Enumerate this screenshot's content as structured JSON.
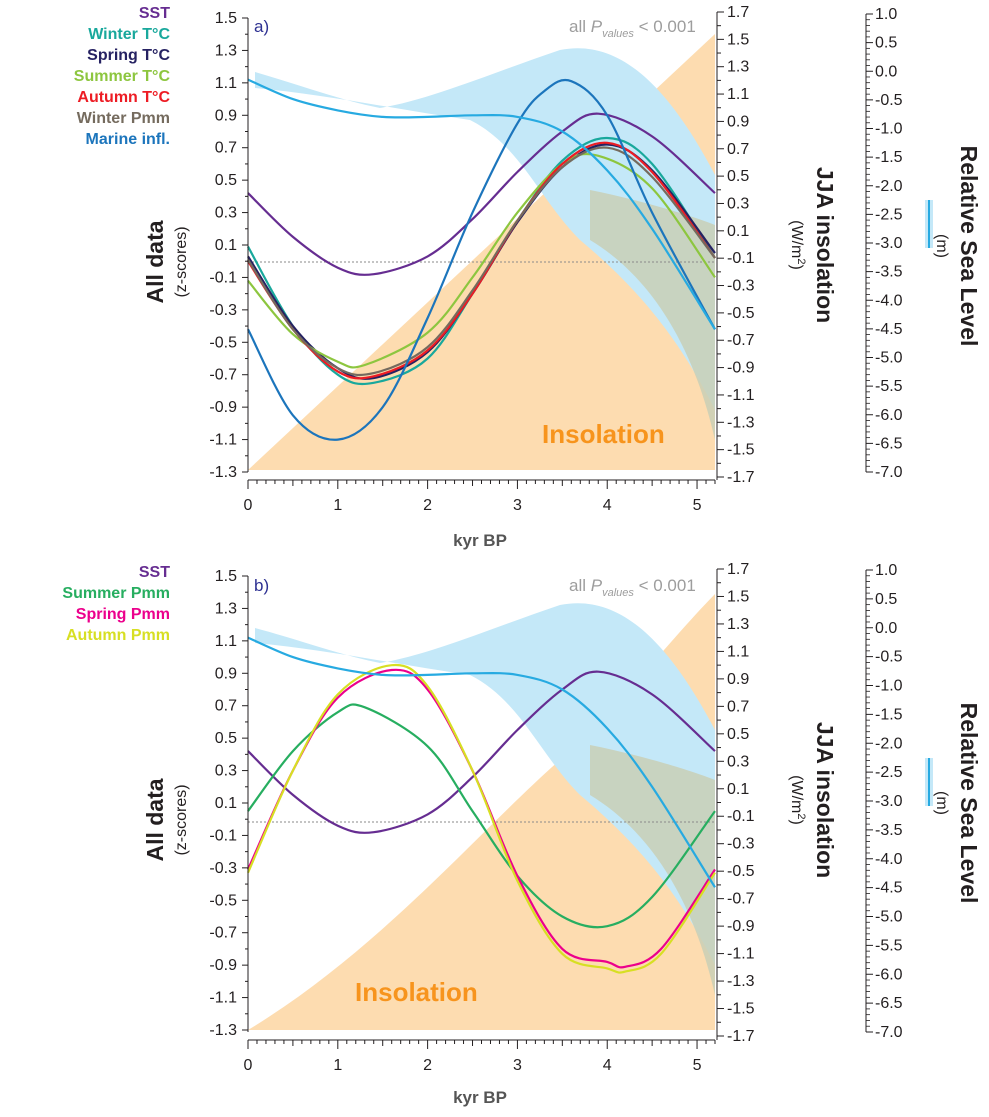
{
  "colors": {
    "insolation_fill": "#fddcb0",
    "sea_level_band": "#c4e8f8",
    "overlap_fill": "#c9cfb6",
    "sea_level_line": "#27aae1",
    "insolation_text": "#f7941d",
    "pvalue_text": "#9d9d9d",
    "panel_label_text": "#2e3192"
  },
  "x_axis": {
    "title": "kyr BP",
    "ticks": [
      "0",
      "1",
      "2",
      "3",
      "4",
      "5"
    ]
  },
  "left_axis": {
    "title": "All data",
    "subtitle": "(z-scores)",
    "ticks": [
      "1.5",
      "1.3",
      "1.1",
      "0.9",
      "0.7",
      "0.5",
      "0.3",
      "0.1",
      "-0.1",
      "-0.3",
      "-0.5",
      "-0.7",
      "-0.9",
      "-1.1",
      "-1.3"
    ]
  },
  "mid_axis": {
    "title": "JJA insolation",
    "subtitle_unit": "(W/m",
    "subtitle_sup": "2",
    "subtitle_close": ")",
    "ticks": [
      "1.7",
      "1.5",
      "1.3",
      "1.1",
      "0.9",
      "0.7",
      "0.5",
      "0.3",
      "0.1",
      "-0.1",
      "-0.3",
      "-0.5",
      "-0.7",
      "-0.9",
      "-1.1",
      "-1.3",
      "-1.5",
      "-1.7"
    ]
  },
  "right_axis": {
    "title": "Relative Sea Level",
    "subtitle": "(m)",
    "ticks": [
      "1.0",
      "0.5",
      "0.0",
      "-0.5",
      "-1.0",
      "-1.5",
      "-2.0",
      "-2.5",
      "-3.0",
      "-3.5",
      "-4.0",
      "-4.5",
      "-5.0",
      "-5.5",
      "-6.0",
      "-6.5",
      "-7.0"
    ]
  },
  "pvalue": {
    "prefix": "all ",
    "p": "P",
    "sub": "values",
    "suffix": " < 0.001"
  },
  "insolation_label": "Insolation",
  "chart_data": [
    {
      "panel": "a)",
      "type": "line",
      "xlabel": "kyr BP",
      "ylabel": "All data (z-scores)",
      "xlim": [
        0,
        5.2
      ],
      "ylim": [
        -1.3,
        1.5
      ],
      "legend_position": "top-left",
      "series": [
        {
          "name": "SST",
          "color": "#662d91",
          "x": [
            0,
            0.5,
            1,
            1.4,
            2,
            2.5,
            3,
            3.5,
            3.9,
            4.5,
            5.2
          ],
          "y": [
            0.42,
            0.15,
            -0.04,
            -0.08,
            0.03,
            0.26,
            0.55,
            0.8,
            0.91,
            0.77,
            0.42
          ]
        },
        {
          "name": "Winter T°C",
          "color": "#19a89c",
          "x": [
            0,
            0.5,
            1,
            1.4,
            2,
            2.5,
            3,
            3.5,
            4,
            4.5,
            5.2
          ],
          "y": [
            0.09,
            -0.4,
            -0.7,
            -0.75,
            -0.6,
            -0.2,
            0.25,
            0.62,
            0.76,
            0.6,
            0.02
          ]
        },
        {
          "name": "Spring T°C",
          "color": "#262262",
          "x": [
            0,
            0.5,
            1,
            1.4,
            2,
            2.5,
            3,
            3.5,
            4,
            4.5,
            5.2
          ],
          "y": [
            0.03,
            -0.4,
            -0.66,
            -0.72,
            -0.56,
            -0.2,
            0.24,
            0.58,
            0.72,
            0.56,
            0.05
          ]
        },
        {
          "name": "Summer T°C",
          "color": "#8dc63f",
          "x": [
            0,
            0.5,
            1,
            1.3,
            2,
            2.5,
            3,
            3.5,
            3.9,
            4.5,
            5.2
          ],
          "y": [
            -0.12,
            -0.45,
            -0.62,
            -0.64,
            -0.44,
            -0.1,
            0.3,
            0.6,
            0.65,
            0.45,
            -0.1
          ]
        },
        {
          "name": "Autumn T°C",
          "color": "#ed1c24",
          "x": [
            0,
            0.5,
            1,
            1.4,
            2,
            2.5,
            3,
            3.5,
            4,
            4.5,
            5.2
          ],
          "y": [
            0,
            -0.42,
            -0.68,
            -0.71,
            -0.55,
            -0.2,
            0.25,
            0.6,
            0.73,
            0.55,
            0.02
          ]
        },
        {
          "name": "Winter Pmm",
          "color": "#756b5e",
          "x": [
            0,
            0.5,
            1,
            1.4,
            2,
            2.5,
            3,
            3.5,
            4,
            4.5,
            5.2
          ],
          "y": [
            0.01,
            -0.42,
            -0.66,
            -0.69,
            -0.53,
            -0.18,
            0.25,
            0.58,
            0.7,
            0.52,
            0.02
          ]
        },
        {
          "name": "Marine infl.",
          "color": "#1c75bc",
          "x": [
            0,
            0.5,
            1,
            1.5,
            2,
            2.5,
            3,
            3.3,
            3.6,
            4,
            4.5,
            5.2
          ],
          "y": [
            -0.42,
            -0.95,
            -1.1,
            -0.9,
            -0.35,
            0.3,
            0.85,
            1.05,
            1.11,
            0.9,
            0.3,
            -0.42
          ]
        }
      ],
      "sea_level_line": {
        "x": [
          0,
          0.5,
          1,
          1.5,
          2,
          2.5,
          3,
          3.5,
          4,
          4.5,
          5.2
        ],
        "y": [
          1.12,
          1.0,
          0.93,
          0.89,
          0.89,
          0.9,
          0.89,
          0.8,
          0.56,
          0.2,
          -0.42
        ]
      }
    },
    {
      "panel": "b)",
      "type": "line",
      "xlabel": "kyr BP",
      "ylabel": "All data (z-scores)",
      "xlim": [
        0,
        5.2
      ],
      "ylim": [
        -1.3,
        1.5
      ],
      "legend_position": "top-left",
      "series": [
        {
          "name": "SST",
          "color": "#662d91",
          "x": [
            0,
            0.5,
            1,
            1.4,
            2,
            2.5,
            3,
            3.5,
            3.9,
            4.5,
            5.2
          ],
          "y": [
            0.42,
            0.15,
            -0.04,
            -0.08,
            0.03,
            0.26,
            0.55,
            0.8,
            0.91,
            0.77,
            0.42
          ]
        },
        {
          "name": "Summer Pmm",
          "color": "#27ae60",
          "x": [
            0,
            0.5,
            1,
            1.3,
            2,
            2.5,
            3,
            3.5,
            4,
            4.5,
            5.2
          ],
          "y": [
            0.05,
            0.42,
            0.66,
            0.69,
            0.45,
            0.05,
            -0.35,
            -0.6,
            -0.66,
            -0.48,
            0.05
          ]
        },
        {
          "name": "Spring Pmm",
          "color": "#ec008c",
          "x": [
            0,
            0.5,
            1,
            1.6,
            2,
            2.5,
            3,
            3.5,
            4,
            4.2,
            4.6,
            5.2
          ],
          "y": [
            -0.31,
            0.3,
            0.75,
            0.92,
            0.8,
            0.3,
            -0.35,
            -0.8,
            -0.88,
            -0.91,
            -0.8,
            -0.31
          ]
        },
        {
          "name": "Autumn Pmm",
          "color": "#d7df23",
          "x": [
            0,
            0.5,
            1,
            1.6,
            2,
            2.5,
            3,
            3.5,
            4,
            4.2,
            4.6,
            5.2
          ],
          "y": [
            -0.33,
            0.3,
            0.77,
            0.95,
            0.82,
            0.3,
            -0.38,
            -0.83,
            -0.92,
            -0.94,
            -0.83,
            -0.33
          ]
        }
      ],
      "sea_level_line": {
        "x": [
          0,
          0.5,
          1,
          1.5,
          2,
          2.5,
          3,
          3.5,
          4,
          4.5,
          5.2
        ],
        "y": [
          1.12,
          1.0,
          0.93,
          0.89,
          0.89,
          0.9,
          0.89,
          0.8,
          0.56,
          0.2,
          -0.42
        ]
      }
    }
  ]
}
